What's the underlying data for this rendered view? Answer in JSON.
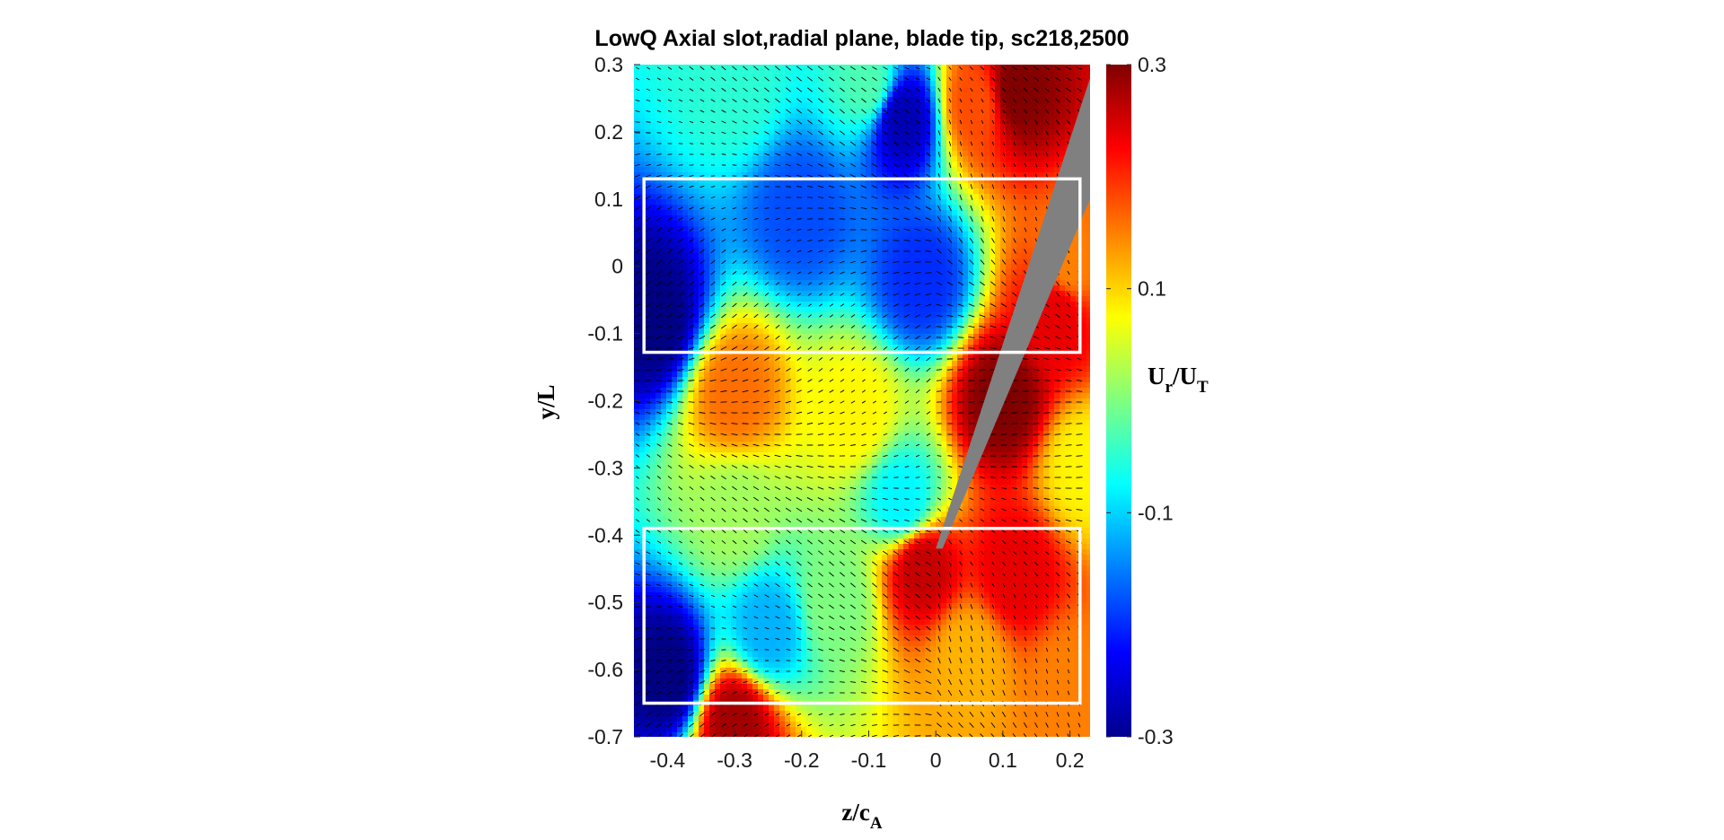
{
  "chart_data": {
    "type": "heatmap",
    "subtype": "contour-with-vector-field",
    "title": "LowQ Axial slot,radial plane, blade tip, sc218,2500",
    "xlabel": {
      "main": "z/c",
      "sub": "A"
    },
    "ylabel": "y/L",
    "xlim": [
      -0.45,
      0.23
    ],
    "ylim": [
      -0.7,
      0.3
    ],
    "x_ticks": [
      -0.4,
      -0.3,
      -0.2,
      -0.1,
      0,
      0.1,
      0.2
    ],
    "x_tick_labels": [
      "-0.4",
      "-0.3",
      "-0.2",
      "-0.1",
      "0",
      "0.1",
      "0.2"
    ],
    "y_ticks": [
      0.3,
      0.2,
      0.1,
      0,
      -0.1,
      -0.2,
      -0.3,
      -0.4,
      -0.5,
      -0.6,
      -0.7
    ],
    "y_tick_labels": [
      "0.3",
      "0.2",
      "0.1",
      "0",
      "-0.1",
      "-0.2",
      "-0.3",
      "-0.4",
      "-0.5",
      "-0.6",
      "-0.7"
    ],
    "colorbar": {
      "label": {
        "main": "U",
        "sub1": "r",
        "sep": "/U",
        "sub2": "T"
      },
      "limits": [
        -0.3,
        0.3
      ],
      "ticks": [
        0.3,
        0.1,
        -0.1,
        -0.3
      ],
      "tick_labels": [
        "0.3",
        "0.1",
        "-0.1",
        "-0.3"
      ],
      "colormap": "jet"
    },
    "blade_section": {
      "color": "#808080",
      "polygon": [
        [
          -0.0,
          -0.42
        ],
        [
          0.23,
          0.28
        ],
        [
          0.23,
          0.1
        ],
        [
          0.01,
          -0.42
        ]
      ]
    },
    "highlight_boxes": [
      {
        "x": [
          -0.435,
          0.215
        ],
        "y": [
          -0.128,
          0.13
        ]
      },
      {
        "x": [
          -0.435,
          0.215
        ],
        "y": [
          -0.65,
          -0.39
        ]
      }
    ],
    "highlight_box_color": "#ffffff",
    "field_features": [
      {
        "x": -0.42,
        "y": -0.08,
        "value": -0.3
      },
      {
        "x": -0.4,
        "y": -0.61,
        "value": -0.3
      },
      {
        "x": -0.2,
        "y": 0.08,
        "value": -0.18
      },
      {
        "x": -0.05,
        "y": 0.22,
        "value": -0.27
      },
      {
        "x": -0.02,
        "y": -0.02,
        "value": -0.2
      },
      {
        "x": -0.1,
        "y": 0.27,
        "value": -0.03
      },
      {
        "x": -0.3,
        "y": 0.27,
        "value": -0.05
      },
      {
        "x": -0.3,
        "y": -0.19,
        "value": 0.16
      },
      {
        "x": -0.12,
        "y": -0.22,
        "value": 0.08
      },
      {
        "x": -0.05,
        "y": -0.35,
        "value": -0.08
      },
      {
        "x": -0.3,
        "y": -0.37,
        "value": 0.02
      },
      {
        "x": -0.02,
        "y": -0.45,
        "value": 0.26
      },
      {
        "x": 0.12,
        "y": -0.46,
        "value": 0.24
      },
      {
        "x": 0.1,
        "y": -0.2,
        "value": 0.3
      },
      {
        "x": 0.18,
        "y": -0.07,
        "value": 0.24
      },
      {
        "x": 0.2,
        "y": 0.0,
        "value": 0.15
      },
      {
        "x": 0.22,
        "y": -0.3,
        "value": 0.08
      },
      {
        "x": 0.2,
        "y": -0.62,
        "value": 0.15
      },
      {
        "x": 0.05,
        "y": -0.58,
        "value": 0.12
      },
      {
        "x": -0.15,
        "y": -0.5,
        "value": 0.0
      },
      {
        "x": -0.25,
        "y": -0.54,
        "value": -0.12
      },
      {
        "x": -0.3,
        "y": -0.68,
        "value": 0.28
      },
      {
        "x": 0.12,
        "y": 0.26,
        "value": 0.3
      },
      {
        "x": 0.06,
        "y": 0.24,
        "value": 0.18
      }
    ],
    "vectors_shown": true
  }
}
